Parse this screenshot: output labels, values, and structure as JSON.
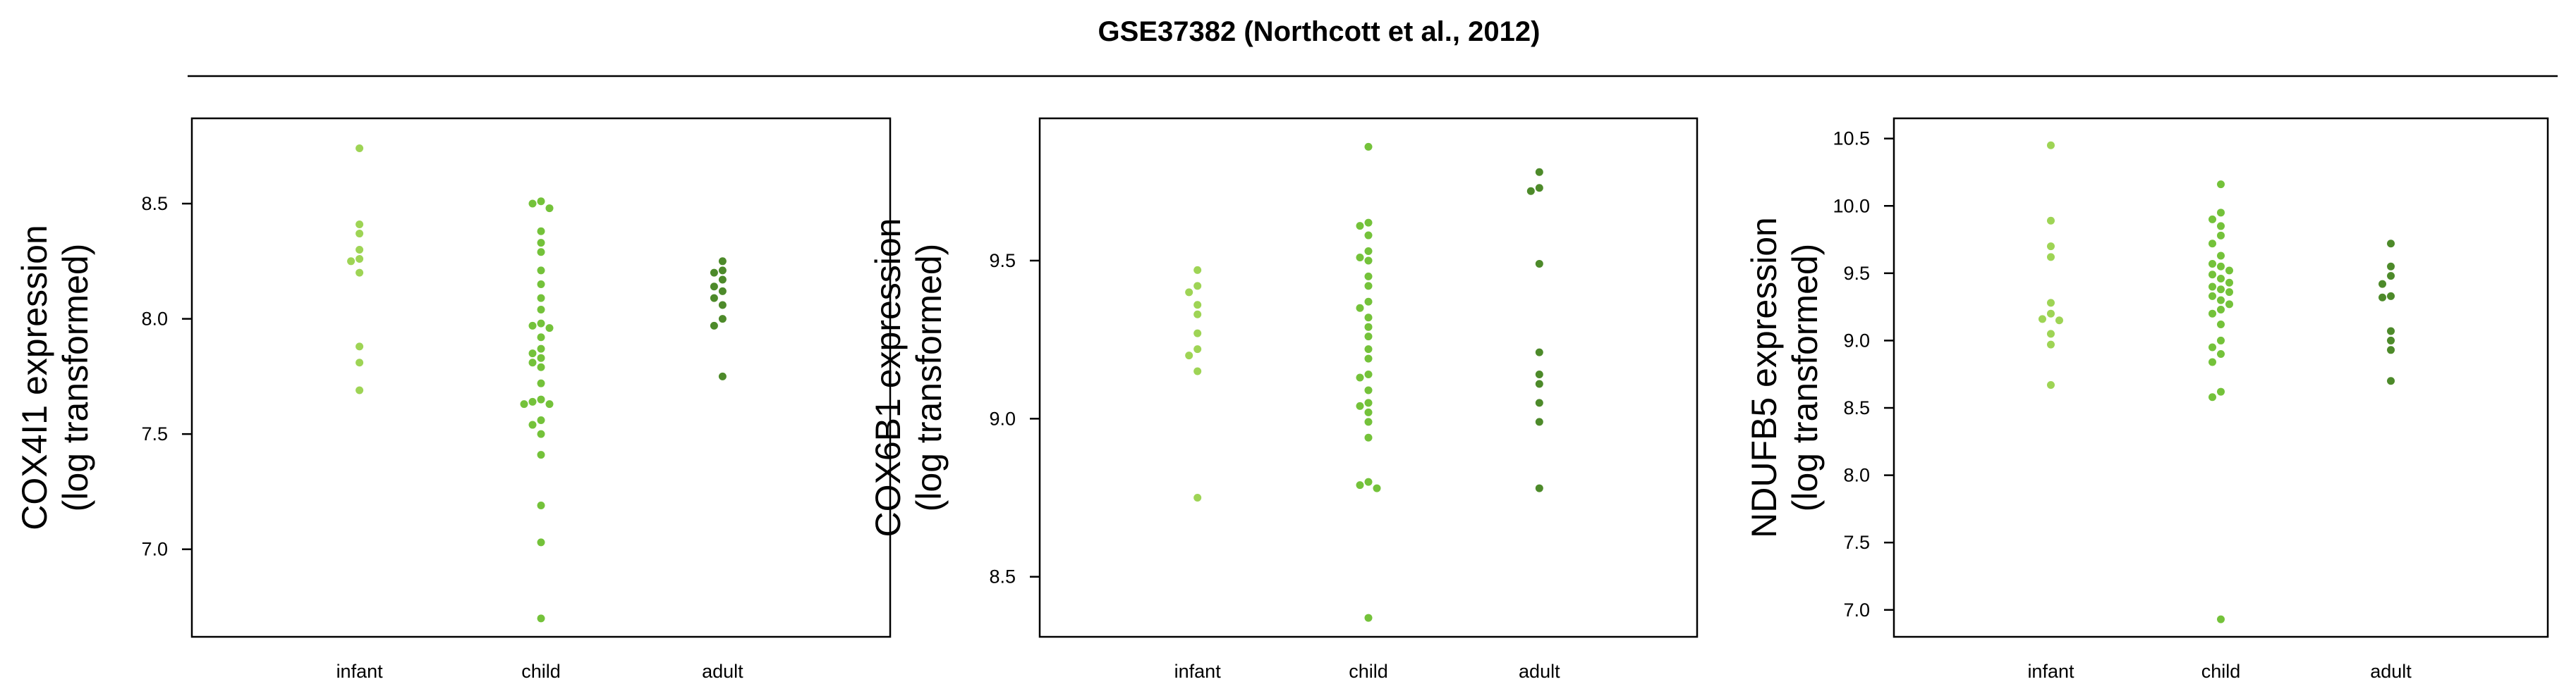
{
  "figure_title": "GSE37382 (Northcott et al., 2012)",
  "colors": {
    "infant": "#9ed455",
    "child": "#74c23a",
    "adult": "#4d8a2a",
    "frame": "#000000"
  },
  "chart_data": [
    {
      "type": "scatter",
      "title": "",
      "ylabel_line1": "COX4I1 expression",
      "ylabel_line2": "(log transformed)",
      "categories": [
        "infant",
        "child",
        "adult"
      ],
      "ylim": [
        6.62,
        8.87
      ],
      "yticks": [
        7.0,
        7.5,
        8.0,
        8.5
      ],
      "ytick_labels": [
        "7.0",
        "7.5",
        "8.0",
        "8.5"
      ],
      "series": [
        {
          "category": "infant",
          "values": [
            8.74,
            8.41,
            8.37,
            8.3,
            8.26,
            8.25,
            8.2,
            7.88,
            7.81,
            7.69
          ]
        },
        {
          "category": "child",
          "values": [
            8.51,
            8.5,
            8.48,
            8.38,
            8.33,
            8.29,
            8.21,
            8.15,
            8.09,
            8.04,
            7.98,
            7.97,
            7.96,
            7.92,
            7.87,
            7.85,
            7.83,
            7.81,
            7.79,
            7.72,
            7.65,
            7.64,
            7.63,
            7.63,
            7.56,
            7.54,
            7.5,
            7.41,
            7.19,
            7.03,
            6.7
          ]
        },
        {
          "category": "adult",
          "values": [
            8.25,
            8.21,
            8.2,
            8.17,
            8.14,
            8.12,
            8.09,
            8.06,
            8.0,
            7.97,
            7.75
          ]
        }
      ]
    },
    {
      "type": "scatter",
      "title": "",
      "ylabel_line1": "COX6B1 expression",
      "ylabel_line2": "(log transformed)",
      "categories": [
        "infant",
        "child",
        "adult"
      ],
      "ylim": [
        8.31,
        9.95
      ],
      "yticks": [
        8.5,
        9.0,
        9.5
      ],
      "ytick_labels": [
        "8.5",
        "9.0",
        "9.5"
      ],
      "series": [
        {
          "category": "infant",
          "values": [
            9.47,
            9.42,
            9.4,
            9.36,
            9.33,
            9.27,
            9.22,
            9.2,
            9.15,
            8.75
          ]
        },
        {
          "category": "child",
          "values": [
            9.86,
            9.62,
            9.61,
            9.58,
            9.53,
            9.51,
            9.5,
            9.45,
            9.42,
            9.37,
            9.35,
            9.32,
            9.29,
            9.26,
            9.22,
            9.19,
            9.14,
            9.13,
            9.09,
            9.05,
            9.04,
            9.02,
            8.99,
            8.94,
            8.8,
            8.79,
            8.78,
            8.37
          ]
        },
        {
          "category": "adult",
          "values": [
            9.78,
            9.73,
            9.72,
            9.49,
            9.21,
            9.14,
            9.11,
            9.05,
            8.99,
            8.78
          ]
        }
      ]
    },
    {
      "type": "scatter",
      "title": "",
      "ylabel_line1": "NDUFB5 expression",
      "ylabel_line2": "(log transformed)",
      "categories": [
        "infant",
        "child",
        "adult"
      ],
      "ylim": [
        6.8,
        10.65
      ],
      "yticks": [
        7.0,
        7.5,
        8.0,
        8.5,
        9.0,
        9.5,
        10.0,
        10.5
      ],
      "ytick_labels": [
        "7.0",
        "7.5",
        "8.0",
        "8.5",
        "9.0",
        "9.5",
        "10.0",
        "10.5"
      ],
      "series": [
        {
          "category": "infant",
          "values": [
            10.45,
            9.89,
            9.7,
            9.62,
            9.28,
            9.2,
            9.16,
            9.15,
            9.05,
            8.97,
            8.67
          ]
        },
        {
          "category": "child",
          "values": [
            10.16,
            9.95,
            9.9,
            9.85,
            9.78,
            9.72,
            9.63,
            9.57,
            9.55,
            9.52,
            9.49,
            9.46,
            9.43,
            9.4,
            9.38,
            9.36,
            9.33,
            9.3,
            9.27,
            9.23,
            9.2,
            9.12,
            9.0,
            8.95,
            8.9,
            8.84,
            8.62,
            8.58,
            6.93
          ]
        },
        {
          "category": "adult",
          "values": [
            9.72,
            9.55,
            9.48,
            9.42,
            9.33,
            9.32,
            9.07,
            9.0,
            8.93,
            8.7
          ]
        }
      ]
    }
  ]
}
